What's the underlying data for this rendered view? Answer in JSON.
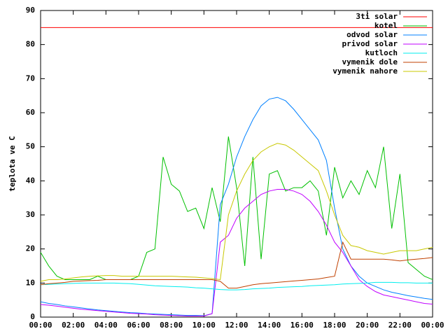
{
  "chart_data": {
    "type": "line",
    "y_label": "teplota ve C",
    "x": [
      0,
      0.5,
      1,
      1.5,
      2,
      2.5,
      3,
      3.5,
      4,
      4.5,
      5,
      5.5,
      6,
      6.5,
      7,
      7.5,
      8,
      8.5,
      9,
      9.5,
      10,
      10.5,
      11,
      11.5,
      12,
      12.5,
      13,
      13.5,
      14,
      14.5,
      15,
      15.5,
      16,
      16.5,
      17,
      17.5,
      18,
      18.5,
      19,
      19.5,
      20,
      20.5,
      21,
      21.5,
      22,
      22.5,
      23,
      23.5,
      24
    ],
    "xlim": [
      0,
      24
    ],
    "xticks": [
      {
        "value": 0,
        "label": "00:00"
      },
      {
        "value": 2,
        "label": "02:00"
      },
      {
        "value": 4,
        "label": "04:00"
      },
      {
        "value": 6,
        "label": "06:00"
      },
      {
        "value": 8,
        "label": "08:00"
      },
      {
        "value": 10,
        "label": "10:00"
      },
      {
        "value": 12,
        "label": "12:00"
      },
      {
        "value": 14,
        "label": "14:00"
      },
      {
        "value": 16,
        "label": "16:00"
      },
      {
        "value": 18,
        "label": "18:00"
      },
      {
        "value": 20,
        "label": "20:00"
      },
      {
        "value": 22,
        "label": "22:00"
      },
      {
        "value": 24,
        "label": "00:00"
      }
    ],
    "ylim": [
      0,
      90
    ],
    "yticks": [
      0,
      10,
      20,
      30,
      40,
      50,
      60,
      70,
      80,
      90
    ],
    "legend": "top-right",
    "series": [
      {
        "name": "3ti solar",
        "color": "#ff0000",
        "values": [
          85,
          85,
          85,
          85,
          85,
          85,
          85,
          85,
          85,
          85,
          85,
          85,
          85,
          85,
          85,
          85,
          85,
          85,
          85,
          85,
          85,
          85,
          85,
          85,
          85,
          85,
          85,
          85,
          85,
          85,
          85,
          85,
          85,
          85,
          85,
          85,
          85,
          85,
          85,
          85,
          85,
          85,
          85,
          85,
          85,
          85,
          85,
          85,
          85
        ]
      },
      {
        "name": "kotel",
        "color": "#00c000",
        "values": [
          19,
          15,
          12,
          11,
          11,
          11,
          11,
          12,
          11,
          11,
          11,
          11,
          12,
          19,
          20,
          47,
          39,
          37,
          31,
          32,
          26,
          38,
          28,
          53,
          38,
          15,
          47,
          17,
          42,
          43,
          37,
          38,
          38,
          40,
          37,
          24,
          44,
          35,
          40,
          36,
          43,
          38,
          50,
          26,
          42,
          16,
          14,
          12,
          11
        ]
      },
      {
        "name": "odvod solar",
        "color": "#0080ff",
        "values": [
          4.5,
          4,
          3.7,
          3.3,
          3,
          2.7,
          2.4,
          2.1,
          1.9,
          1.7,
          1.5,
          1.3,
          1.2,
          1,
          0.9,
          0.8,
          0.7,
          0.6,
          0.5,
          0.5,
          0.4,
          1,
          33,
          39,
          47,
          53,
          58,
          62,
          64,
          64.5,
          63.5,
          61,
          58,
          55,
          52,
          46,
          32,
          20,
          15,
          12,
          10,
          9,
          8,
          7.3,
          6.8,
          6.3,
          5.9,
          5.5,
          5.2
        ]
      },
      {
        "name": "privod solar",
        "color": "#c000ff",
        "values": [
          3.7,
          3.5,
          3.2,
          2.9,
          2.6,
          2.3,
          2.1,
          1.9,
          1.7,
          1.5,
          1.3,
          1.1,
          1,
          0.9,
          0.7,
          0.6,
          0.5,
          0.4,
          0.3,
          0.3,
          0.3,
          1,
          22,
          24,
          29,
          32,
          34,
          36,
          37,
          37.5,
          37.5,
          37,
          36,
          34,
          31,
          27,
          22,
          19,
          15,
          11,
          9,
          7.5,
          6.5,
          6,
          5.5,
          5,
          4.5,
          4,
          3.8
        ]
      },
      {
        "name": "kutloch",
        "color": "#00eeee",
        "values": [
          9.5,
          9.6,
          9.7,
          9.8,
          9.9,
          10,
          10,
          10,
          10,
          10,
          9.9,
          9.8,
          9.6,
          9.4,
          9.2,
          9.1,
          9,
          8.9,
          8.8,
          8.6,
          8.5,
          8.3,
          8.1,
          8,
          8,
          8.1,
          8.3,
          8.4,
          8.5,
          8.7,
          8.8,
          8.9,
          9,
          9.2,
          9.3,
          9.4,
          9.5,
          9.7,
          9.8,
          9.9,
          10,
          10.2,
          10.2,
          10.2,
          10.1,
          10.1,
          10,
          10,
          10
        ]
      },
      {
        "name": "vymenik dole",
        "color": "#c04000",
        "values": [
          9.5,
          9.8,
          10,
          10.2,
          10.5,
          10.6,
          10.7,
          10.8,
          11,
          11,
          11,
          11,
          11,
          11,
          11,
          11,
          11,
          11,
          11,
          11,
          11,
          11,
          10.5,
          8.5,
          8.5,
          9,
          9.5,
          9.8,
          10,
          10.2,
          10.4,
          10.6,
          10.8,
          11,
          11.2,
          11.6,
          12,
          22,
          17,
          17,
          17,
          17,
          17,
          16.8,
          16.5,
          16.8,
          17,
          17.2,
          17.5
        ]
      },
      {
        "name": "vymenik nahore",
        "color": "#c8c800",
        "values": [
          10.5,
          11,
          11,
          11.2,
          11.5,
          11.8,
          12,
          12.1,
          12.2,
          12.2,
          12,
          12,
          12,
          12,
          12,
          12,
          12,
          11.9,
          11.8,
          11.7,
          11.5,
          11.3,
          11,
          30,
          37,
          42,
          46,
          48.5,
          50,
          51,
          50.5,
          49,
          47,
          45,
          43,
          37,
          30,
          24,
          21,
          20.5,
          19.5,
          19,
          18.5,
          19,
          19.5,
          19.5,
          19.5,
          20,
          20.5
        ]
      }
    ]
  }
}
